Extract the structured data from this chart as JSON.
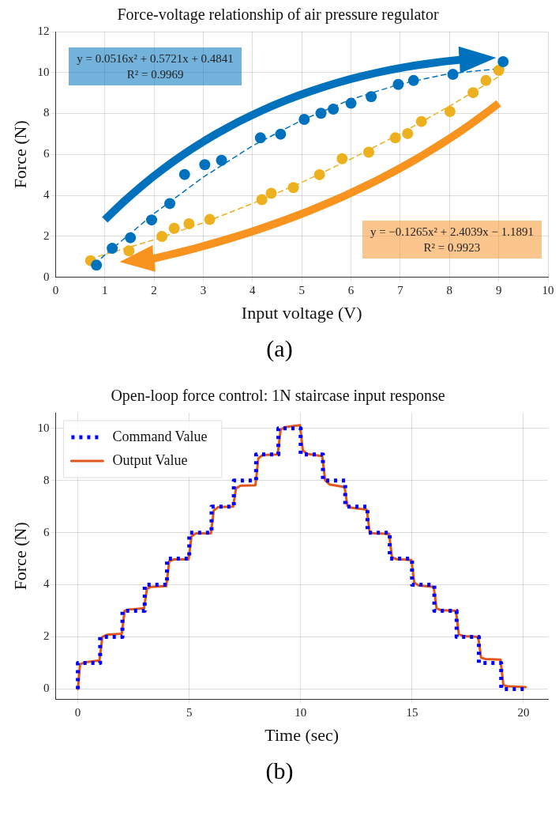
{
  "chart_data": [
    {
      "type": "scatter",
      "title": "Force-voltage relationship of air pressure regulator",
      "xlabel": "Input voltage (V)",
      "ylabel": "Force (N)",
      "xlim": [
        0,
        10
      ],
      "ylim": [
        0,
        12
      ],
      "xticks": [
        0,
        1,
        2,
        3,
        4,
        5,
        6,
        7,
        8,
        9,
        10
      ],
      "yticks": [
        0,
        2,
        4,
        6,
        8,
        10,
        12
      ],
      "grid": true,
      "legend": false,
      "series": [
        {
          "color": "#0072bd",
          "marker": "circle",
          "x": [
            0.83,
            1.15,
            1.52,
            1.95,
            2.32,
            2.62,
            3.03,
            3.37,
            4.16,
            4.57,
            5.05,
            5.39,
            5.64,
            6.0,
            6.41,
            6.96,
            7.27,
            8.07,
            9.09
          ],
          "values": [
            0.59,
            1.41,
            1.93,
            2.8,
            3.6,
            5.02,
            5.5,
            5.71,
            6.81,
            6.99,
            7.71,
            8.01,
            8.21,
            8.5,
            8.82,
            9.42,
            9.61,
            9.91,
            10.53
          ]
        },
        {
          "color": "#edb120",
          "marker": "circle",
          "x": [
            0.71,
            1.49,
            2.16,
            2.41,
            2.71,
            3.13,
            4.19,
            4.38,
            4.83,
            5.36,
            5.82,
            6.36,
            6.9,
            7.15,
            7.43,
            8.01,
            8.48,
            8.74,
            9.0
          ],
          "values": [
            0.81,
            1.29,
            1.99,
            2.39,
            2.61,
            2.82,
            3.79,
            4.1,
            4.38,
            5.01,
            5.79,
            6.11,
            6.81,
            7.02,
            7.61,
            8.1,
            9.02,
            9.61,
            10.11
          ]
        },
        {
          "type": "line",
          "color": "#0072bd",
          "marker": "none",
          "line_style": "dashed",
          "x": [
            0.8,
            1,
            2,
            3,
            4,
            5,
            6,
            7,
            8,
            9.1
          ],
          "values": [
            0.65,
            1.09,
            3.11,
            4.89,
            6.42,
            7.67,
            8.69,
            9.44,
            9.95,
            10.21
          ]
        },
        {
          "type": "line",
          "color": "#edb120",
          "marker": "none",
          "line_style": "dashed",
          "x": [
            0.7,
            1,
            2,
            3,
            4,
            5,
            6,
            7,
            8,
            9.05
          ],
          "values": [
            0.91,
            1.11,
            1.83,
            2.66,
            3.6,
            4.63,
            5.78,
            7.01,
            8.36,
            9.87
          ]
        }
      ],
      "annotations": [
        "y = 0.0516x² + 0.5721x + 0.4841\nR² = 0.9969",
        "y = −0.1265x² + 2.4039x − 1.1891\nR² = 0.9923",
        "(a)"
      ]
    },
    {
      "type": "line",
      "title": "Open-loop force control: 1N staircase input response",
      "xlabel": "Time (sec)",
      "ylabel": "Force (N)",
      "xlim": [
        -1.0,
        21.1
      ],
      "ylim": [
        -0.4,
        10.6
      ],
      "xticks": [
        0,
        5,
        10,
        15,
        20
      ],
      "yticks": [
        0,
        2,
        4,
        6,
        8,
        10
      ],
      "grid": true,
      "legend": "top left",
      "series": [
        {
          "name": "Command Value",
          "type": "step",
          "color": "#0000ff",
          "line_style": "dotted",
          "marker": "none",
          "x": [
            0,
            0,
            1,
            2,
            3,
            4,
            5,
            6,
            7,
            8,
            9,
            10,
            11,
            12,
            13,
            14,
            15,
            16,
            17,
            18,
            19,
            20.1
          ],
          "values": [
            0,
            1,
            2,
            3,
            4,
            5,
            6,
            7,
            8,
            9,
            10,
            9,
            8,
            7,
            6,
            5,
            4,
            3,
            2,
            1,
            0,
            0
          ]
        },
        {
          "name": "Output Value",
          "color": "#e0561b",
          "line_style": "solid",
          "marker": "none",
          "x": [
            0,
            0.1,
            0.3,
            0.97,
            1.1,
            1.3,
            1.97,
            2.1,
            2.3,
            2.97,
            3.1,
            3.3,
            3.97,
            4.1,
            4.3,
            4.97,
            5.1,
            5.3,
            5.97,
            6.1,
            6.3,
            6.97,
            7.1,
            7.3,
            7.97,
            8.1,
            8.3,
            8.97,
            9.1,
            9.3,
            9.97,
            10.1,
            10.3,
            10.97,
            11.1,
            11.3,
            11.97,
            12.1,
            12.3,
            12.97,
            13.1,
            13.3,
            13.97,
            14.1,
            14.3,
            14.97,
            15.1,
            15.3,
            15.97,
            16.1,
            16.3,
            16.97,
            17.1,
            17.3,
            17.97,
            18.1,
            18.3,
            18.97,
            19.1,
            19.3,
            20.1
          ],
          "values": [
            0,
            0.95,
            1.02,
            1.1,
            2.0,
            2.08,
            2.12,
            3.0,
            3.05,
            3.1,
            3.85,
            3.92,
            3.95,
            4.9,
            4.97,
            4.97,
            5.85,
            5.97,
            5.97,
            6.85,
            6.98,
            7.0,
            7.7,
            7.8,
            7.82,
            8.85,
            8.98,
            9.0,
            9.95,
            10.05,
            10.12,
            9.15,
            9.02,
            8.93,
            8.0,
            7.85,
            7.75,
            7.03,
            6.95,
            6.88,
            6.0,
            5.97,
            5.95,
            5.05,
            4.98,
            4.95,
            4.08,
            3.97,
            3.92,
            3.1,
            3.02,
            3.0,
            2.1,
            2.03,
            2.0,
            1.2,
            1.15,
            1.13,
            0.15,
            0.1,
            0.07
          ]
        }
      ],
      "annotations": [
        "(b)"
      ]
    }
  ]
}
